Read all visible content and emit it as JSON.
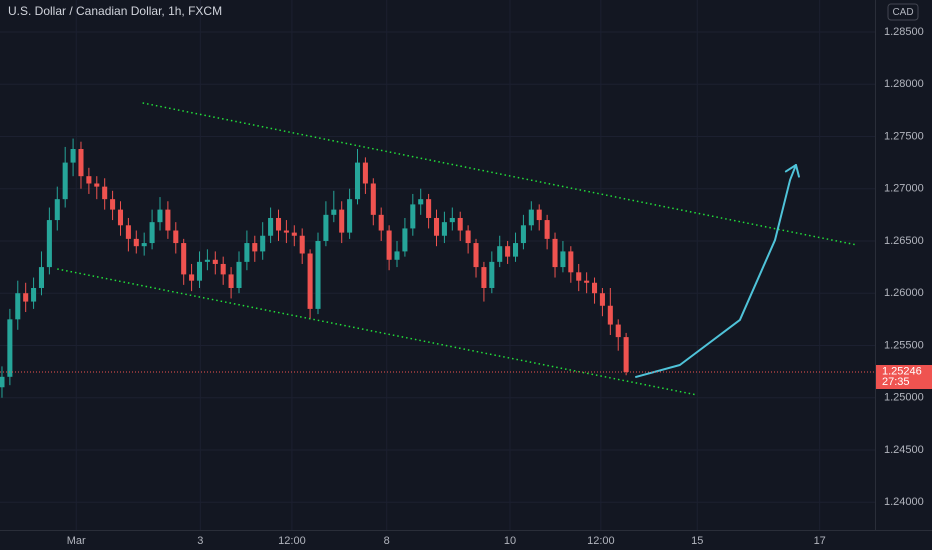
{
  "chart_data": {
    "type": "candlestick",
    "title": "U.S. Dollar / Canadian Dollar, 1h, FXCM",
    "currency": "CAD",
    "countdown": "27:35",
    "up_color": "#26a69a",
    "down_color": "#ef5350",
    "grid": true,
    "open": [
      1.251,
      1.252,
      1.2575,
      1.26,
      1.2592,
      1.2605,
      1.2625,
      1.267,
      1.269,
      1.2725,
      1.2738,
      1.2712,
      1.2705,
      1.2702,
      1.269,
      1.268,
      1.2665,
      1.2652,
      1.2645,
      1.2648,
      1.2668,
      1.268,
      1.266,
      1.2648,
      1.2618,
      1.2612,
      1.263,
      1.2632,
      1.2628,
      1.2618,
      1.2605,
      1.263,
      1.2648,
      1.264,
      1.2655,
      1.2672,
      1.266,
      1.2658,
      1.2655,
      1.2638,
      1.2585,
      1.265,
      1.2675,
      1.268,
      1.2658,
      1.269,
      1.2725,
      1.2705,
      1.2675,
      1.266,
      1.2632,
      1.264,
      1.2662,
      1.2685,
      1.269,
      1.2672,
      1.2655,
      1.2668,
      1.2672,
      1.266,
      1.2648,
      1.2625,
      1.2605,
      1.263,
      1.2645,
      1.2635,
      1.2648,
      1.2665,
      1.268,
      1.267,
      1.2652,
      1.2625,
      1.264,
      1.262,
      1.2612,
      1.261,
      1.26,
      1.2588,
      1.257,
      1.2558
    ],
    "high": [
      1.253,
      1.2585,
      1.2612,
      1.261,
      1.2615,
      1.264,
      1.2682,
      1.2702,
      1.274,
      1.2748,
      1.2745,
      1.272,
      1.2712,
      1.271,
      1.2698,
      1.2688,
      1.2672,
      1.266,
      1.2658,
      1.268,
      1.2692,
      1.2688,
      1.2668,
      1.2652,
      1.2628,
      1.264,
      1.2642,
      1.264,
      1.2635,
      1.2625,
      1.264,
      1.266,
      1.2655,
      1.2668,
      1.2682,
      1.268,
      1.267,
      1.2665,
      1.2662,
      1.2642,
      1.2658,
      1.2688,
      1.2698,
      1.2688,
      1.27,
      1.2738,
      1.273,
      1.271,
      1.2682,
      1.2665,
      1.265,
      1.2672,
      1.2695,
      1.27,
      1.2695,
      1.268,
      1.2678,
      1.2682,
      1.2678,
      1.2665,
      1.2652,
      1.263,
      1.264,
      1.2655,
      1.265,
      1.2658,
      1.2675,
      1.2688,
      1.2685,
      1.2675,
      1.2658,
      1.265,
      1.2645,
      1.2628,
      1.262,
      1.2615,
      1.2605,
      1.2605,
      1.2575,
      1.2562
    ],
    "low": [
      1.25,
      1.2512,
      1.2565,
      1.2582,
      1.2585,
      1.2598,
      1.2618,
      1.266,
      1.2682,
      1.2712,
      1.27,
      1.2695,
      1.269,
      1.268,
      1.267,
      1.2655,
      1.264,
      1.2638,
      1.2636,
      1.2642,
      1.266,
      1.2652,
      1.2638,
      1.2608,
      1.2602,
      1.2605,
      1.2622,
      1.2618,
      1.2608,
      1.2595,
      1.26,
      1.2622,
      1.263,
      1.2632,
      1.2648,
      1.265,
      1.2648,
      1.2645,
      1.2628,
      1.2575,
      1.258,
      1.2645,
      1.2668,
      1.2648,
      1.2652,
      1.2685,
      1.2695,
      1.2665,
      1.265,
      1.2622,
      1.2625,
      1.2635,
      1.2655,
      1.2675,
      1.2662,
      1.2645,
      1.2648,
      1.266,
      1.265,
      1.2638,
      1.2615,
      1.2592,
      1.26,
      1.2625,
      1.2628,
      1.263,
      1.2642,
      1.266,
      1.266,
      1.2642,
      1.2615,
      1.262,
      1.261,
      1.2602,
      1.26,
      1.259,
      1.2578,
      1.256,
      1.2545,
      1.25215
    ],
    "close": [
      1.252,
      1.2575,
      1.26,
      1.2592,
      1.2605,
      1.2625,
      1.267,
      1.269,
      1.2725,
      1.2738,
      1.2712,
      1.2705,
      1.2702,
      1.269,
      1.268,
      1.2665,
      1.2652,
      1.2645,
      1.2648,
      1.2668,
      1.268,
      1.266,
      1.2648,
      1.2618,
      1.2612,
      1.263,
      1.2632,
      1.2628,
      1.2618,
      1.2605,
      1.263,
      1.2648,
      1.264,
      1.2655,
      1.2672,
      1.266,
      1.2658,
      1.2655,
      1.2638,
      1.2585,
      1.265,
      1.2675,
      1.268,
      1.2658,
      1.269,
      1.2725,
      1.2705,
      1.2675,
      1.266,
      1.2632,
      1.264,
      1.2662,
      1.2685,
      1.269,
      1.2672,
      1.2655,
      1.2668,
      1.2672,
      1.266,
      1.2648,
      1.2625,
      1.2605,
      1.263,
      1.2645,
      1.2635,
      1.2648,
      1.2665,
      1.268,
      1.267,
      1.2652,
      1.2625,
      1.264,
      1.262,
      1.2612,
      1.261,
      1.26,
      1.2588,
      1.257,
      1.2558,
      1.25246
    ],
    "xlim": [
      -0.25,
      110.5
    ],
    "xticks": [
      {
        "value": 9.4,
        "label": "Mar"
      },
      {
        "value": 25.1,
        "label": "3"
      },
      {
        "value": 36.7,
        "label": "12:00"
      },
      {
        "value": 48.7,
        "label": "8"
      },
      {
        "value": 64.3,
        "label": "10"
      },
      {
        "value": 75.8,
        "label": "12:00"
      },
      {
        "value": 88.0,
        "label": "15"
      },
      {
        "value": 103.5,
        "label": "17"
      }
    ],
    "ylim": [
      1.23734,
      1.28806
    ],
    "yticks": [
      {
        "value": 1.24,
        "label": "1.24000"
      },
      {
        "value": 1.245,
        "label": "1.24500"
      },
      {
        "value": 1.25,
        "label": "1.25000"
      },
      {
        "value": 1.255,
        "label": "1.25500"
      },
      {
        "value": 1.26,
        "label": "1.26000"
      },
      {
        "value": 1.265,
        "label": "1.26500"
      },
      {
        "value": 1.27,
        "label": "1.27000"
      },
      {
        "value": 1.275,
        "label": "1.27500"
      },
      {
        "value": 1.28,
        "label": "1.28000"
      },
      {
        "value": 1.285,
        "label": "1.28500"
      }
    ],
    "trendlines": [
      {
        "color": "#22e03a",
        "x": [
          17.8,
          108.2
        ],
        "y": [
          1.27821,
          1.26462
        ]
      },
      {
        "color": "#22e03a",
        "x": [
          7.0,
          88.0
        ],
        "y": [
          1.26232,
          1.25026
        ]
      }
    ],
    "projection": {
      "color": "#4fc3d9",
      "x": [
        80.25,
        85.8,
        93.4,
        97.85,
        99.75,
        100.5
      ],
      "y": [
        1.25199,
        1.25313,
        1.25744,
        1.2651,
        1.27084,
        1.27227
      ]
    }
  }
}
